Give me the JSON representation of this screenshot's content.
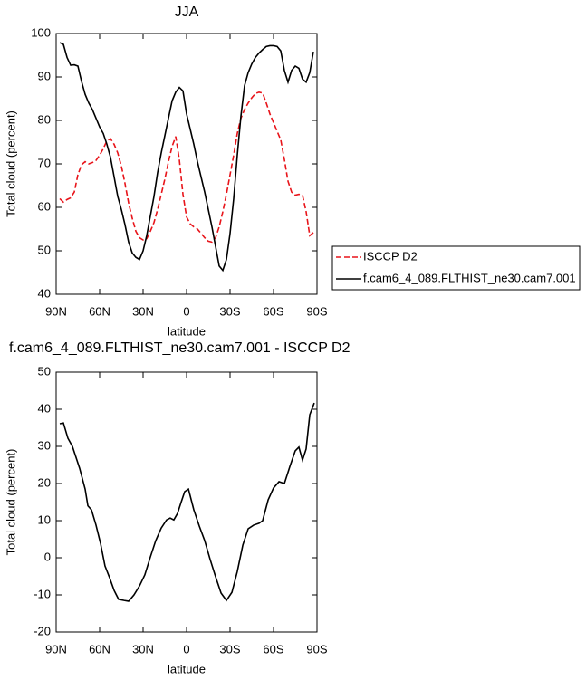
{
  "chart_data": [
    {
      "type": "line",
      "title": "JJA",
      "xlabel": "latitude",
      "ylabel": "Total cloud (percent)",
      "x": [
        87.5,
        85,
        82.5,
        80,
        77.5,
        75,
        72.5,
        70,
        67.5,
        65,
        62.5,
        60,
        57.5,
        55,
        52.5,
        50,
        47.5,
        45,
        42.5,
        40,
        37.5,
        35,
        32.5,
        30,
        27.5,
        25,
        22.5,
        20,
        17.5,
        15,
        12.5,
        10,
        7.5,
        5,
        2.5,
        0,
        -2.5,
        -5,
        -7.5,
        -10,
        -12.5,
        -15,
        -17.5,
        -20,
        -22.5,
        -25,
        -27.5,
        -30,
        -32.5,
        -35,
        -37.5,
        -40,
        -42.5,
        -45,
        -47.5,
        -50,
        -52.5,
        -55,
        -57.5,
        -60,
        -62.5,
        -65,
        -67.5,
        -70,
        -72.5,
        -75,
        -77.5,
        -80,
        -82.5,
        -85,
        -87.5
      ],
      "series": [
        {
          "name": "ISCCP D2",
          "color": "#e8141a",
          "linestyle": "dashed",
          "values": [
            62,
            61.2,
            61.8,
            62.2,
            63.5,
            67.5,
            69.8,
            70.5,
            70,
            70.3,
            70.8,
            72,
            73.5,
            75.3,
            75.8,
            74.5,
            72.5,
            69.5,
            65.5,
            61,
            57.5,
            54.5,
            53,
            52.5,
            52.8,
            54.5,
            56.5,
            59.5,
            63,
            66.5,
            70.5,
            74,
            76.3,
            71,
            63,
            57.8,
            56.2,
            55.5,
            55,
            54,
            53,
            52.2,
            52,
            53,
            55.5,
            59,
            63,
            67.5,
            72,
            77,
            80.5,
            82.5,
            84,
            85.2,
            86.2,
            86.5,
            86.3,
            84,
            81.5,
            79.5,
            77.5,
            75.5,
            71,
            66,
            63.5,
            62.8,
            63,
            62.8,
            59,
            53.5,
            54.2
          ]
        },
        {
          "name": "f.cam6_4_089.FLTHIST_ne30.cam7.001",
          "color": "#000000",
          "linestyle": "solid",
          "values": [
            97.9,
            97.5,
            94.5,
            92.7,
            92.8,
            92.5,
            89,
            86,
            84,
            82.5,
            80.5,
            78.5,
            77,
            74.5,
            71.5,
            67,
            62.5,
            59.5,
            56,
            52,
            49.5,
            48.5,
            48,
            50,
            53.5,
            58,
            62.5,
            68,
            72.5,
            76.5,
            80.5,
            84.5,
            86.5,
            87.6,
            86.8,
            81.5,
            78,
            74.5,
            70.5,
            67,
            63.5,
            59.5,
            55.5,
            51,
            46.5,
            45.5,
            48,
            54,
            62,
            72,
            81,
            88,
            91,
            93,
            94.5,
            95.5,
            96.3,
            97,
            97.2,
            97.2,
            97,
            96,
            91.5,
            88.8,
            91.5,
            92.5,
            92,
            89.5,
            88.8,
            91,
            95.8
          ]
        }
      ],
      "xlim": [
        90,
        -90
      ],
      "xticks": [
        {
          "value": 90,
          "label": "90N"
        },
        {
          "value": 60,
          "label": "60N"
        },
        {
          "value": 30,
          "label": "30N"
        },
        0,
        {
          "value": -30,
          "label": "30S"
        },
        {
          "value": -60,
          "label": "60S"
        },
        {
          "value": -90,
          "label": "90S"
        }
      ],
      "ylim": [
        40,
        100
      ],
      "yticks": [
        40,
        50,
        60,
        70,
        80,
        90,
        100
      ]
    },
    {
      "type": "line",
      "title": "f.cam6_4_089.FLTHIST_ne30.cam7.001 - ISCCP D2",
      "xlabel": "latitude",
      "ylabel": "Total cloud (percent)",
      "x": [
        87.5,
        85,
        81.9,
        78.8,
        73.8,
        70,
        68.1,
        65.6,
        62.5,
        59.4,
        56.3,
        53.1,
        50,
        46.9,
        43.1,
        40,
        36.3,
        32.5,
        28.8,
        25,
        21.3,
        17.5,
        13.8,
        11.3,
        8.8,
        6.3,
        3.8,
        1.3,
        -1.3,
        -5,
        -8.8,
        -12.5,
        -16.3,
        -20,
        -23.8,
        -27.5,
        -31.3,
        -35,
        -38.8,
        -42.5,
        -46.3,
        -50,
        -52.5,
        -56.3,
        -60,
        -63.8,
        -67.5,
        -71.3,
        -75,
        -77.5,
        -80,
        -82.5,
        -85,
        -88.1
      ],
      "series": [
        {
          "color": "#000000",
          "linestyle": "solid",
          "values": [
            36.1,
            36.3,
            32.2,
            30,
            24.1,
            18.5,
            14,
            12.9,
            8.8,
            3.9,
            -2.2,
            -5.4,
            -8.8,
            -11.2,
            -11.5,
            -11.7,
            -10,
            -7.6,
            -4.6,
            0.2,
            4.6,
            8,
            10.2,
            10.7,
            10.2,
            11.9,
            14.9,
            17.8,
            18.5,
            12.9,
            8.5,
            4.6,
            -0.5,
            -5.1,
            -9.5,
            -11.5,
            -9.3,
            -3.7,
            3.4,
            7.8,
            8.8,
            9.3,
            10,
            15.6,
            18.8,
            20.5,
            20,
            24.6,
            28.8,
            29.8,
            26.3,
            29.3,
            38.5,
            41.7
          ]
        }
      ],
      "xlim": [
        90,
        -90
      ],
      "xticks": [
        {
          "value": 90,
          "label": "90N"
        },
        {
          "value": 60,
          "label": "60N"
        },
        {
          "value": 30,
          "label": "30N"
        },
        0,
        {
          "value": -30,
          "label": "30S"
        },
        {
          "value": -60,
          "label": "60S"
        },
        {
          "value": -90,
          "label": "90S"
        }
      ],
      "ylim": [
        -20,
        50
      ],
      "yticks": [
        -20,
        -10,
        0,
        10,
        20,
        30,
        40,
        50
      ]
    }
  ]
}
